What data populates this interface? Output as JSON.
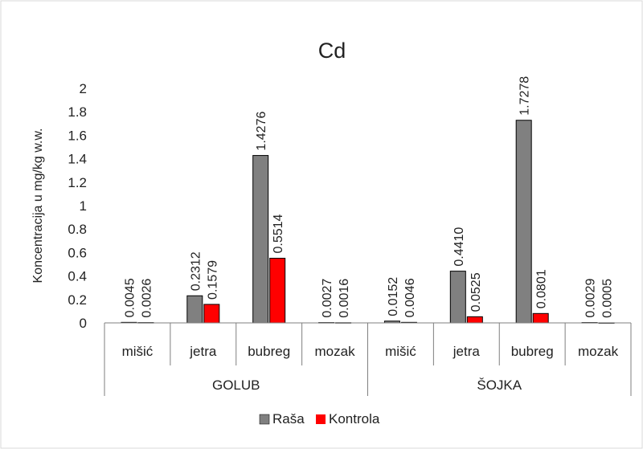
{
  "chart_data": {
    "type": "bar",
    "title": "Cd",
    "ylabel": "Koncentracija u mg/kg w.w.",
    "xlabel": "",
    "ylim": [
      0,
      2
    ],
    "yticks": [
      "0",
      "0.2",
      "0.4",
      "0.6",
      "0.8",
      "1",
      "1.2",
      "1.4",
      "1.6",
      "1.8",
      "2"
    ],
    "groups": [
      {
        "label": "GOLUB",
        "categories": [
          "mišić",
          "jetra",
          "bubreg",
          "mozak"
        ]
      },
      {
        "label": "ŠOJKA",
        "categories": [
          "mišić",
          "jetra",
          "bubreg",
          "mozak"
        ]
      }
    ],
    "series": [
      {
        "name": "Raša",
        "color": "#808080",
        "values": [
          0.0045,
          0.2312,
          1.4276,
          0.0027,
          0.0152,
          0.441,
          1.7278,
          0.0029
        ],
        "labels": [
          "0.0045",
          "0.2312",
          "1.4276",
          "0.0027",
          "0.0152",
          "0.4410",
          "1.7278",
          "0.0029"
        ]
      },
      {
        "name": "Kontrola",
        "color": "#ff0000",
        "values": [
          0.0026,
          0.1579,
          0.5514,
          0.0016,
          0.0046,
          0.0525,
          0.0801,
          0.0005
        ],
        "labels": [
          "0.0026",
          "0.1579",
          "0.5514",
          "0.0016",
          "0.0046",
          "0.0525",
          "0.0801",
          "0.0005"
        ]
      }
    ],
    "legend_position": "bottom",
    "grid": false
  }
}
